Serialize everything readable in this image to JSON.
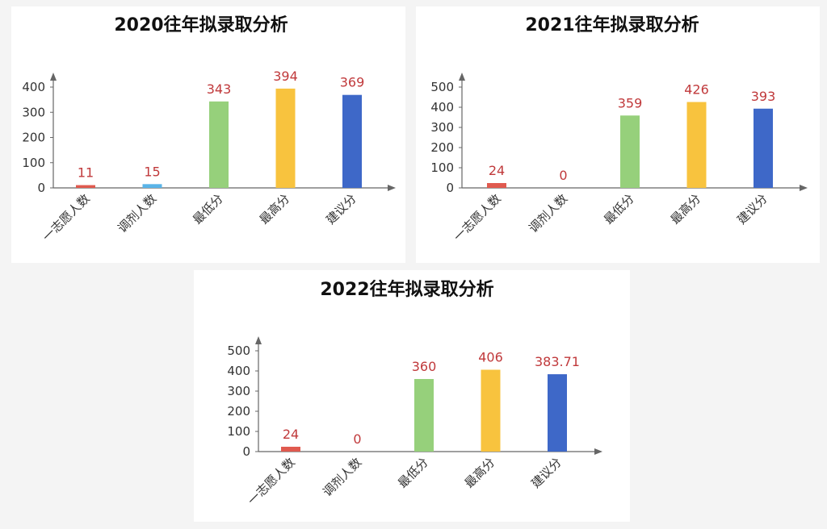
{
  "chart_data": [
    {
      "type": "bar",
      "title": "2020往年拟录取分析",
      "categories": [
        "一志愿人数",
        "调剂人数",
        "最低分",
        "最高分",
        "建议分"
      ],
      "values": [
        11,
        15,
        343,
        394,
        369
      ],
      "value_labels": [
        "11",
        "15",
        "343",
        "394",
        "369"
      ],
      "y_ticks": [
        "0",
        "100",
        "200",
        "300",
        "400"
      ],
      "ylim": [
        0,
        400
      ],
      "bar_colors": [
        "#e05a4f",
        "#5ab4e8",
        "#96d07b",
        "#f8c33e",
        "#3e68c8"
      ]
    },
    {
      "type": "bar",
      "title": "2021往年拟录取分析",
      "categories": [
        "一志愿人数",
        "调剂人数",
        "最低分",
        "最高分",
        "建议分"
      ],
      "values": [
        24,
        0,
        359,
        426,
        393
      ],
      "value_labels": [
        "24",
        "0",
        "359",
        "426",
        "393"
      ],
      "y_ticks": [
        "0",
        "100",
        "200",
        "300",
        "400",
        "500"
      ],
      "ylim": [
        0,
        500
      ],
      "bar_colors": [
        "#e05a4f",
        "#5ab4e8",
        "#96d07b",
        "#f8c33e",
        "#3e68c8"
      ]
    },
    {
      "type": "bar",
      "title": "2022往年拟录取分析",
      "categories": [
        "一志愿人数",
        "调剂人数",
        "最低分",
        "最高分",
        "建议分"
      ],
      "values": [
        24,
        0,
        360,
        406,
        383.71
      ],
      "value_labels": [
        "24",
        "0",
        "360",
        "406",
        "383.71"
      ],
      "y_ticks": [
        "0",
        "100",
        "200",
        "300",
        "400",
        "500"
      ],
      "ylim": [
        0,
        500
      ],
      "bar_colors": [
        "#e05a4f",
        "#5ab4e8",
        "#96d07b",
        "#f8c33e",
        "#3e68c8"
      ]
    }
  ]
}
